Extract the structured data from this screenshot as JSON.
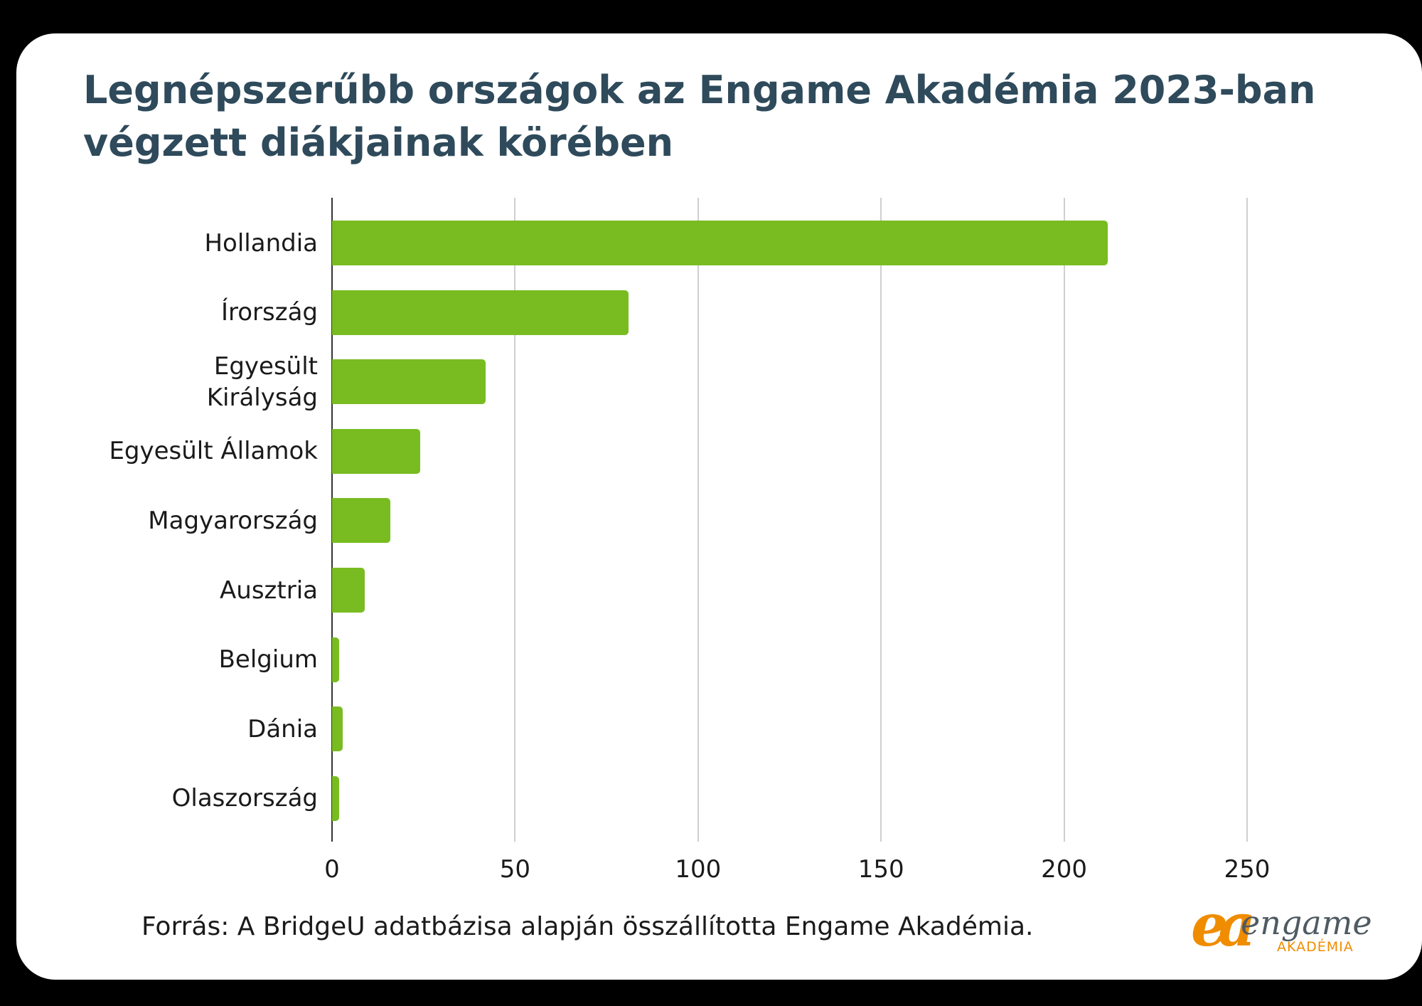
{
  "title": "Legnépszerűbb országok az Engame Akadémia 2023-ban végzett diákjainak körében",
  "source": "Forrás: A BridgeU adatbázisa alapján összállította Engame Akadémia.",
  "logo": {
    "mark": "ea",
    "word": "engame",
    "sub": "AKADÉMIA"
  },
  "colors": {
    "bar": "#78bc21",
    "title": "#2e4a5b",
    "logo_orange": "#f08c00",
    "logo_gray": "#4f5b62"
  },
  "chart_data": {
    "type": "bar",
    "orientation": "horizontal",
    "title": "Legnépszerűbb országok az Engame Akadémia 2023-ban végzett diákjainak körében",
    "categories": [
      "Hollandia",
      "Írország",
      "Egyesült Királyság",
      "Egyesült Államok",
      "Magyarország",
      "Ausztria",
      "Belgium",
      "Dánia",
      "Olaszország"
    ],
    "category_labels": [
      [
        "Hollandia"
      ],
      [
        "Írország"
      ],
      [
        "Egyesült",
        "Királyság"
      ],
      [
        "Egyesült Államok"
      ],
      [
        "Magyarország"
      ],
      [
        "Ausztria"
      ],
      [
        "Belgium"
      ],
      [
        "Dánia"
      ],
      [
        "Olaszország"
      ]
    ],
    "values": [
      212,
      81,
      42,
      24,
      16,
      9,
      2,
      3,
      2
    ],
    "xlabel": "",
    "ylabel": "",
    "xlim": [
      0,
      250
    ],
    "xticks": [
      "0",
      "50",
      "100",
      "150",
      "200",
      "250"
    ],
    "grid": true,
    "legend": "none",
    "source": "Forrás: A BridgeU adatbázisa alapján összállította Engame Akadémia."
  }
}
